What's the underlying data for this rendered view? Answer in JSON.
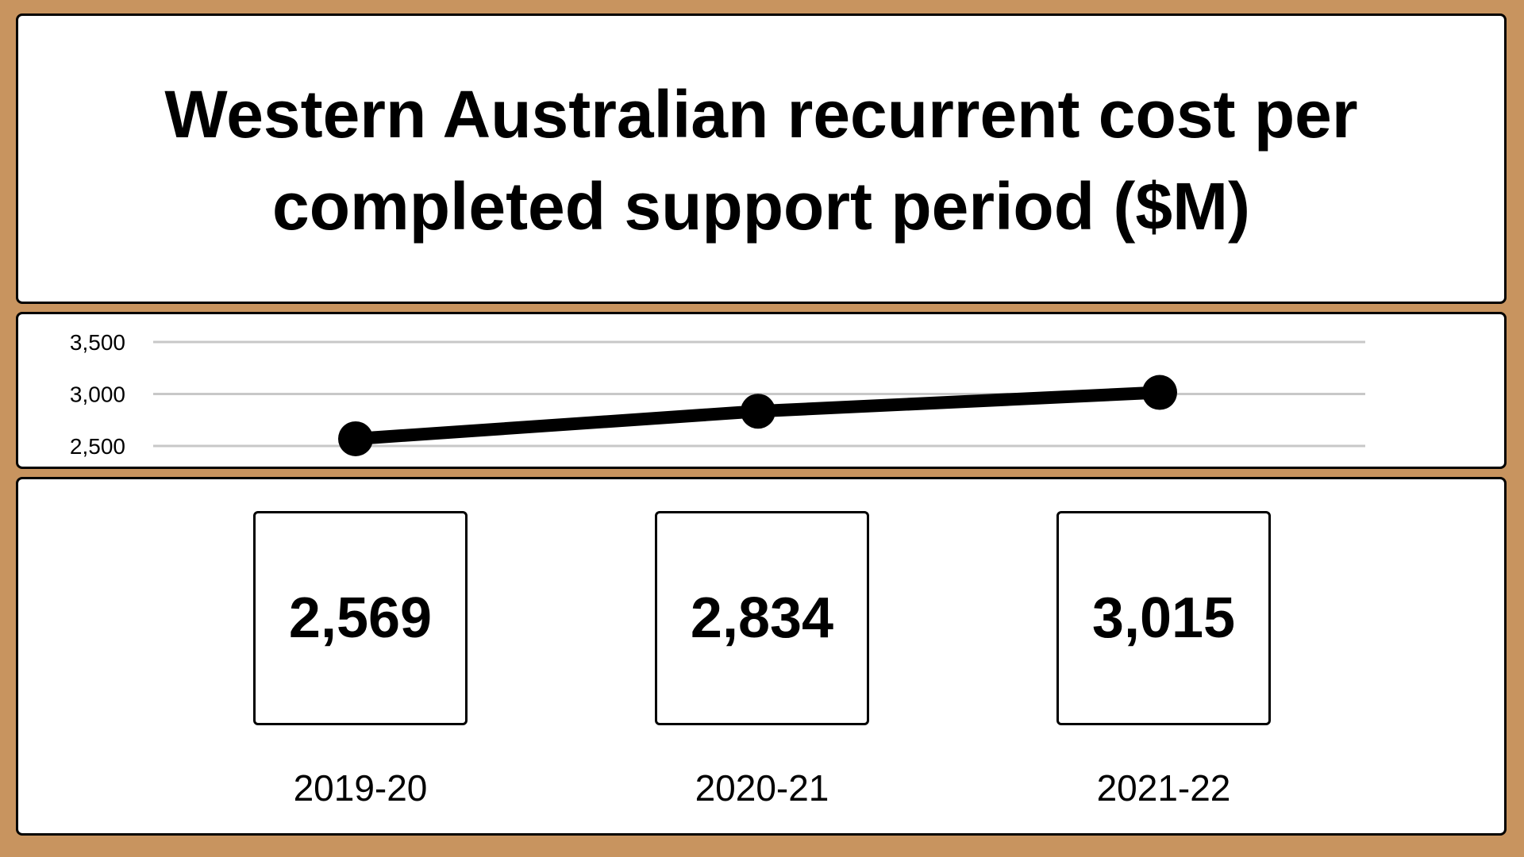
{
  "title": "Western Australian recurrent cost per completed support period ($M)",
  "chart_data": {
    "type": "line",
    "title": "Western Australian recurrent cost per completed support period ($M)",
    "categories": [
      "2019-20",
      "2020-21",
      "2021-22"
    ],
    "series": [
      {
        "values": [
          2569,
          2834,
          3015
        ]
      }
    ],
    "yticks": [
      "2,500",
      "3,000",
      "3,500"
    ],
    "ytick_values": [
      2500,
      3000,
      3500
    ],
    "ylim": [
      2500,
      3500
    ],
    "grid": true,
    "legend": "none",
    "line_color": "#000000",
    "grid_color": "#c8c8c8"
  },
  "cards": [
    {
      "period": "2019-20",
      "value": "2,569"
    },
    {
      "period": "2020-21",
      "value": "2,834"
    },
    {
      "period": "2021-22",
      "value": "3,015"
    }
  ],
  "colors": {
    "background": "#c8945f",
    "panel": "#ffffff",
    "border": "#000000"
  }
}
